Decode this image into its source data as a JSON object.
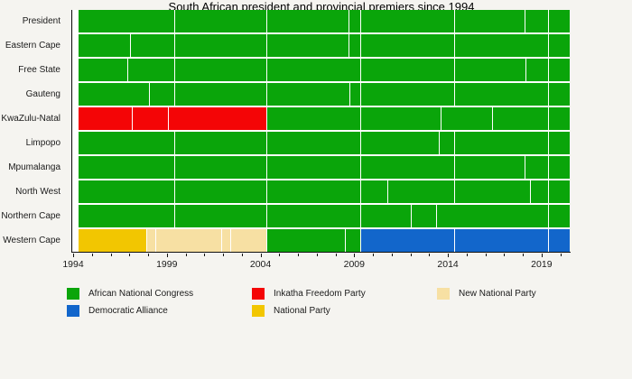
{
  "title": "South African president and provincial premiers since 1994",
  "chart_data": {
    "type": "bar",
    "variant": "horizontal-timeline (Gantt-style, party colour per term segment)",
    "title": "South African president and provincial premiers since 1994",
    "xlim": [
      1994,
      2020.5
    ],
    "xticks": [
      1994,
      1999,
      2004,
      2009,
      2014,
      2019
    ],
    "minor_ticks_every_year": true,
    "grid": false,
    "legend_position": "bottom",
    "parties": {
      "ANC": {
        "label": "African National Congress",
        "color": "#0aa50a"
      },
      "DA": {
        "label": "Democratic Alliance",
        "color": "#1266cb"
      },
      "IFP": {
        "label": "Inkatha Freedom Party",
        "color": "#f40506"
      },
      "NP": {
        "label": "National Party",
        "color": "#f2c601"
      },
      "NNP": {
        "label": "New National Party",
        "color": "#f7e0a3"
      }
    },
    "legend_columns": [
      [
        "ANC",
        "DA"
      ],
      [
        "IFP",
        "NP"
      ],
      [
        "NNP"
      ]
    ],
    "rows": [
      {
        "label": "President",
        "segments": [
          {
            "start": 1994.3,
            "end": 1999.45,
            "party": "ANC"
          },
          {
            "start": 1999.45,
            "end": 2004.35,
            "party": "ANC"
          },
          {
            "start": 2004.35,
            "end": 2008.73,
            "party": "ANC"
          },
          {
            "start": 2008.73,
            "end": 2009.37,
            "party": "ANC"
          },
          {
            "start": 2009.37,
            "end": 2014.4,
            "party": "ANC"
          },
          {
            "start": 2014.4,
            "end": 2018.12,
            "party": "ANC"
          },
          {
            "start": 2018.12,
            "end": 2019.4,
            "party": "ANC"
          },
          {
            "start": 2019.4,
            "end": 2020.5,
            "party": "ANC"
          }
        ]
      },
      {
        "label": "Eastern Cape",
        "segments": [
          {
            "start": 1994.3,
            "end": 1997.1,
            "party": "ANC"
          },
          {
            "start": 1997.1,
            "end": 1999.45,
            "party": "ANC"
          },
          {
            "start": 1999.45,
            "end": 2004.35,
            "party": "ANC"
          },
          {
            "start": 2004.35,
            "end": 2008.73,
            "party": "ANC"
          },
          {
            "start": 2008.73,
            "end": 2009.37,
            "party": "ANC"
          },
          {
            "start": 2009.37,
            "end": 2014.4,
            "party": "ANC"
          },
          {
            "start": 2014.4,
            "end": 2019.4,
            "party": "ANC"
          },
          {
            "start": 2019.4,
            "end": 2020.5,
            "party": "ANC"
          }
        ]
      },
      {
        "label": "Free State",
        "segments": [
          {
            "start": 1994.3,
            "end": 1996.95,
            "party": "ANC"
          },
          {
            "start": 1996.95,
            "end": 1999.45,
            "party": "ANC"
          },
          {
            "start": 1999.45,
            "end": 2004.35,
            "party": "ANC"
          },
          {
            "start": 2004.35,
            "end": 2009.37,
            "party": "ANC"
          },
          {
            "start": 2009.37,
            "end": 2014.4,
            "party": "ANC"
          },
          {
            "start": 2014.4,
            "end": 2018.2,
            "party": "ANC"
          },
          {
            "start": 2018.2,
            "end": 2019.4,
            "party": "ANC"
          },
          {
            "start": 2019.4,
            "end": 2020.5,
            "party": "ANC"
          }
        ]
      },
      {
        "label": "Gauteng",
        "segments": [
          {
            "start": 1994.3,
            "end": 1998.1,
            "party": "ANC"
          },
          {
            "start": 1998.1,
            "end": 1999.45,
            "party": "ANC"
          },
          {
            "start": 1999.45,
            "end": 2004.35,
            "party": "ANC"
          },
          {
            "start": 2004.35,
            "end": 2008.8,
            "party": "ANC"
          },
          {
            "start": 2008.8,
            "end": 2009.37,
            "party": "ANC"
          },
          {
            "start": 2009.37,
            "end": 2014.4,
            "party": "ANC"
          },
          {
            "start": 2014.4,
            "end": 2019.4,
            "party": "ANC"
          },
          {
            "start": 2019.4,
            "end": 2020.5,
            "party": "ANC"
          }
        ]
      },
      {
        "label": "KwaZulu-Natal",
        "segments": [
          {
            "start": 1994.3,
            "end": 1997.2,
            "party": "IFP"
          },
          {
            "start": 1997.2,
            "end": 1999.1,
            "party": "IFP"
          },
          {
            "start": 1999.1,
            "end": 2004.35,
            "party": "IFP"
          },
          {
            "start": 2004.35,
            "end": 2009.37,
            "party": "ANC"
          },
          {
            "start": 2009.37,
            "end": 2013.65,
            "party": "ANC"
          },
          {
            "start": 2013.65,
            "end": 2016.4,
            "party": "ANC"
          },
          {
            "start": 2016.4,
            "end": 2019.4,
            "party": "ANC"
          },
          {
            "start": 2019.4,
            "end": 2020.5,
            "party": "ANC"
          }
        ]
      },
      {
        "label": "Limpopo",
        "segments": [
          {
            "start": 1994.3,
            "end": 1999.45,
            "party": "ANC"
          },
          {
            "start": 1999.45,
            "end": 2004.35,
            "party": "ANC"
          },
          {
            "start": 2004.35,
            "end": 2009.37,
            "party": "ANC"
          },
          {
            "start": 2009.37,
            "end": 2013.55,
            "party": "ANC"
          },
          {
            "start": 2013.55,
            "end": 2014.4,
            "party": "ANC"
          },
          {
            "start": 2014.4,
            "end": 2019.4,
            "party": "ANC"
          },
          {
            "start": 2019.4,
            "end": 2020.5,
            "party": "ANC"
          }
        ]
      },
      {
        "label": "Mpumalanga",
        "segments": [
          {
            "start": 1994.3,
            "end": 1999.45,
            "party": "ANC"
          },
          {
            "start": 1999.45,
            "end": 2004.35,
            "party": "ANC"
          },
          {
            "start": 2004.35,
            "end": 2009.37,
            "party": "ANC"
          },
          {
            "start": 2009.37,
            "end": 2014.4,
            "party": "ANC"
          },
          {
            "start": 2014.4,
            "end": 2018.15,
            "party": "ANC"
          },
          {
            "start": 2018.15,
            "end": 2019.4,
            "party": "ANC"
          },
          {
            "start": 2019.4,
            "end": 2020.5,
            "party": "ANC"
          }
        ]
      },
      {
        "label": "North West",
        "segments": [
          {
            "start": 1994.3,
            "end": 1999.45,
            "party": "ANC"
          },
          {
            "start": 1999.45,
            "end": 2004.35,
            "party": "ANC"
          },
          {
            "start": 2004.35,
            "end": 2009.37,
            "party": "ANC"
          },
          {
            "start": 2009.37,
            "end": 2010.8,
            "party": "ANC"
          },
          {
            "start": 2010.8,
            "end": 2014.4,
            "party": "ANC"
          },
          {
            "start": 2014.4,
            "end": 2018.45,
            "party": "ANC"
          },
          {
            "start": 2018.45,
            "end": 2019.4,
            "party": "ANC"
          },
          {
            "start": 2019.4,
            "end": 2020.5,
            "party": "ANC"
          }
        ]
      },
      {
        "label": "Northern Cape",
        "segments": [
          {
            "start": 1994.3,
            "end": 1999.45,
            "party": "ANC"
          },
          {
            "start": 1999.45,
            "end": 2004.35,
            "party": "ANC"
          },
          {
            "start": 2004.35,
            "end": 2009.37,
            "party": "ANC"
          },
          {
            "start": 2009.37,
            "end": 2012.05,
            "party": "ANC"
          },
          {
            "start": 2012.05,
            "end": 2013.4,
            "party": "ANC"
          },
          {
            "start": 2013.4,
            "end": 2019.4,
            "party": "ANC"
          },
          {
            "start": 2019.4,
            "end": 2020.5,
            "party": "ANC"
          }
        ]
      },
      {
        "label": "Western Cape",
        "segments": [
          {
            "start": 1994.3,
            "end": 1997.95,
            "party": "NP"
          },
          {
            "start": 1997.95,
            "end": 1998.45,
            "party": "NNP"
          },
          {
            "start": 1998.45,
            "end": 2001.95,
            "party": "NNP"
          },
          {
            "start": 2001.95,
            "end": 2002.45,
            "party": "NNP"
          },
          {
            "start": 2002.45,
            "end": 2004.35,
            "party": "NNP"
          },
          {
            "start": 2004.35,
            "end": 2008.55,
            "party": "ANC"
          },
          {
            "start": 2008.55,
            "end": 2009.37,
            "party": "ANC"
          },
          {
            "start": 2009.37,
            "end": 2014.4,
            "party": "DA"
          },
          {
            "start": 2014.4,
            "end": 2019.4,
            "party": "DA"
          },
          {
            "start": 2019.4,
            "end": 2020.5,
            "party": "DA"
          }
        ]
      }
    ]
  }
}
